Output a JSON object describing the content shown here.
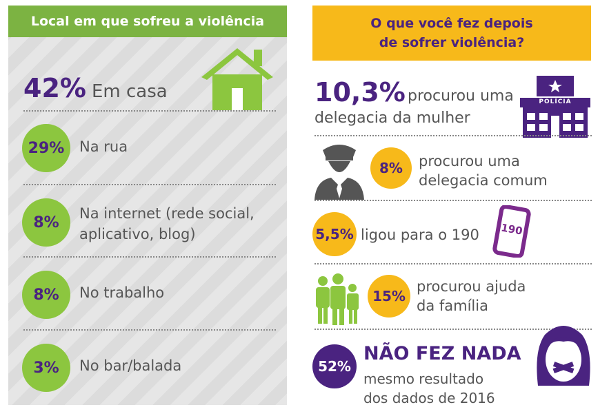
{
  "left": {
    "title": "Local em que sofreu a violência",
    "top_item": {
      "percent": "42%",
      "label": "Em casa"
    },
    "items": [
      {
        "percent": "29%",
        "label": "Na rua"
      },
      {
        "percent": "8%",
        "label": "Na internet (rede social, aplicativo, blog)"
      },
      {
        "percent": "8%",
        "label": "No trabalho"
      },
      {
        "percent": "3%",
        "label": "No bar/balada"
      }
    ]
  },
  "right": {
    "title": "O que você fez depois de sofrer violência?",
    "top_item": {
      "percent": "10,3%",
      "label": "procurou uma delegacia da mulher"
    },
    "police_sign": "POLÍCIA",
    "items": [
      {
        "percent": "8%",
        "label": "procurou uma delegacia comum"
      },
      {
        "percent": "5,5%",
        "label": "ligou para o 190"
      },
      {
        "percent": "15%",
        "label": "procurou ajuda da família"
      }
    ],
    "phone_number": "190",
    "final": {
      "percent": "52%",
      "headline": "NÃO FEZ NADA",
      "label": "mesmo resultado dos dados de 2016"
    }
  },
  "colors": {
    "green": "#8cc63f",
    "header_green": "#7cb342",
    "orange": "#f7b91a",
    "purple": "#4a2380"
  }
}
